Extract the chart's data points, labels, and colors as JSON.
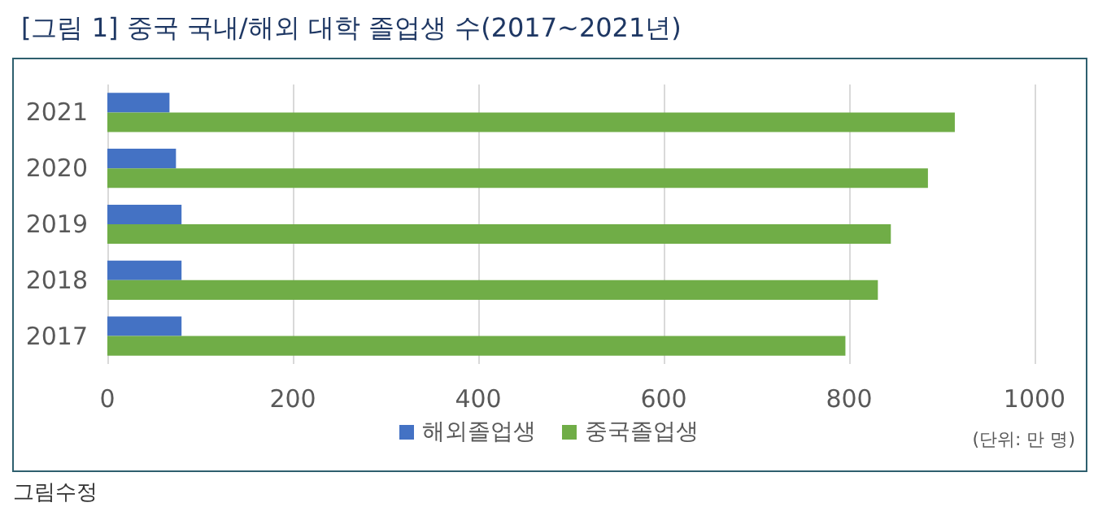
{
  "chart_data": {
    "type": "bar",
    "orientation": "horizontal",
    "title": "[그림 1] 중국 국내/해외 대학 졸업생 수(2017~2021년)",
    "categories": [
      "2021",
      "2020",
      "2019",
      "2018",
      "2017"
    ],
    "series": [
      {
        "name": "해외졸업생",
        "color": "#4472c4",
        "values": [
          67,
          74,
          80,
          80,
          80
        ]
      },
      {
        "name": "중국졸업생",
        "color": "#70ad47",
        "values": [
          914,
          885,
          845,
          831,
          796
        ]
      }
    ],
    "xlim": [
      0,
      1000
    ],
    "xticks": [
      0,
      200,
      400,
      600,
      800,
      1000
    ],
    "grid": "x",
    "legend": "bottom",
    "annotations": [
      "(단위: 만 명)",
      "그림수정"
    ]
  }
}
